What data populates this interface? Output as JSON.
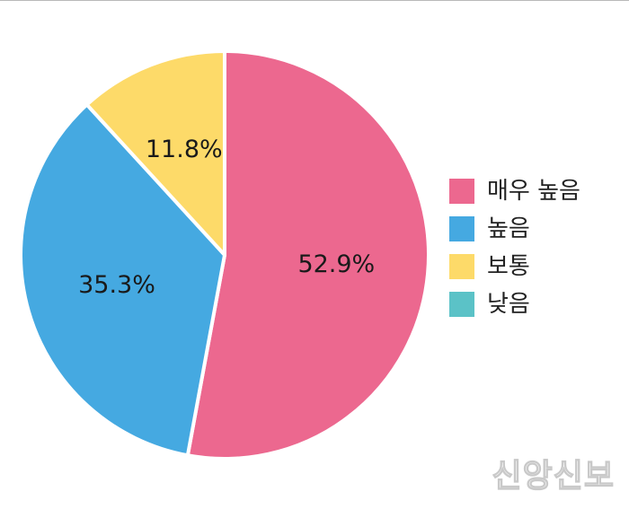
{
  "chart_data": {
    "type": "pie",
    "title": "",
    "slices": [
      {
        "label": "매우 높음",
        "value": 52.9,
        "display": "52.9%",
        "color": "#EC688F"
      },
      {
        "label": "높음",
        "value": 35.3,
        "display": "35.3%",
        "color": "#45A9E1"
      },
      {
        "label": "보통",
        "value": 11.8,
        "display": "11.8%",
        "color": "#FDDA69"
      },
      {
        "label": "낮음",
        "value": 0,
        "display": "",
        "color": "#5BC2C7"
      }
    ],
    "legend_position": "right"
  },
  "watermark": "신앙신보"
}
